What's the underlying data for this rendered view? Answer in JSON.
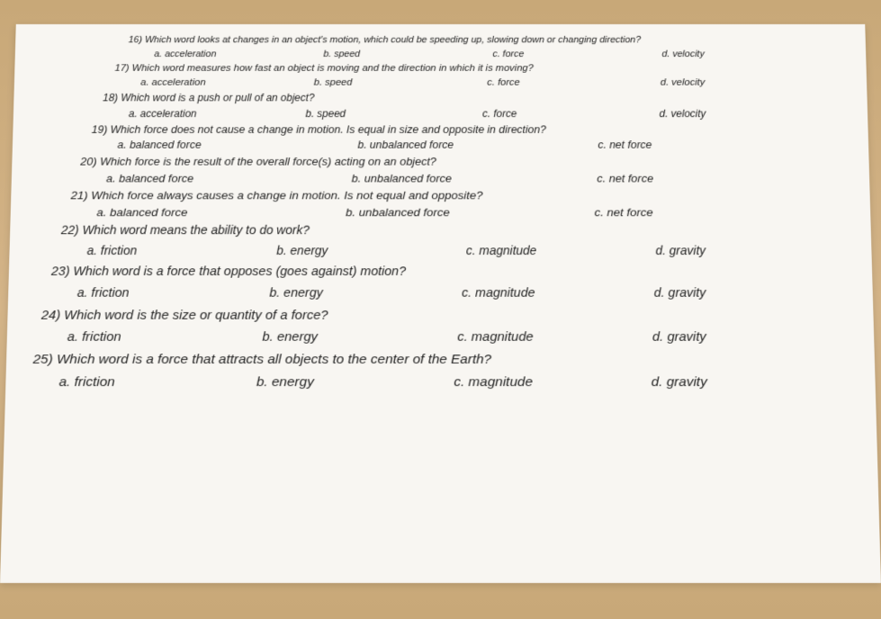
{
  "quiz": {
    "questions": [
      {
        "num": "16)",
        "text": "Which word looks at changes in an object's motion, which could be speeding up, slowing down or changing direction?",
        "opts": [
          "a. acceleration",
          "b. speed",
          "c. force",
          "d. velocity"
        ]
      },
      {
        "num": "17)",
        "text": "Which word measures how fast an object is moving and the direction in which it is moving?",
        "opts": [
          "a. acceleration",
          "b. speed",
          "c. force",
          "d. velocity"
        ]
      },
      {
        "num": "18)",
        "text": "Which word is a push or pull of an object?",
        "opts": [
          "a. acceleration",
          "b. speed",
          "c. force",
          "d. velocity"
        ]
      },
      {
        "num": "19)",
        "text": "Which force does not cause a change in motion. Is equal in size and opposite in direction?",
        "opts": [
          "a. balanced force",
          "b. unbalanced force",
          "c. net force"
        ]
      },
      {
        "num": "20)",
        "text": "Which force is the result of the overall force(s) acting on an object?",
        "opts": [
          "a. balanced force",
          "b. unbalanced force",
          "c. net force"
        ]
      },
      {
        "num": "21)",
        "text": "Which force always causes a change in motion. Is not equal and opposite?",
        "opts": [
          "a. balanced force",
          "b. unbalanced force",
          "c. net force"
        ]
      },
      {
        "num": "22)",
        "text": "Which word means the ability to do work?",
        "opts": [
          "a. friction",
          "b. energy",
          "c. magnitude",
          "d. gravity"
        ]
      },
      {
        "num": "23)",
        "text": "Which word is a force that opposes (goes against) motion?",
        "opts": [
          "a. friction",
          "b. energy",
          "c. magnitude",
          "d. gravity"
        ]
      },
      {
        "num": "24)",
        "text": "Which word is the size or quantity of a force?",
        "opts": [
          "a. friction",
          "b. energy",
          "c. magnitude",
          "d. gravity"
        ]
      },
      {
        "num": "25)",
        "text": "Which word is a force that attracts all objects to the center of the Earth?",
        "opts": [
          "a. friction",
          "b. energy",
          "c. magnitude",
          "d. gravity"
        ]
      }
    ]
  }
}
